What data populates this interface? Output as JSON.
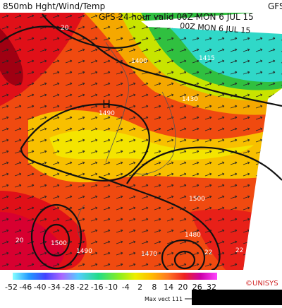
{
  "header": {
    "title": "850mb Hght/Wind/Temp",
    "model_tag": "GFS",
    "valid_time": "GFS 24 hour valid 00Z MON  6 JUL 15",
    "banner": "00Z MON  6 JUL 15"
  },
  "map": {
    "high_marker": "H",
    "labels": [
      "20",
      "1400",
      "1415",
      "1490",
      "1430",
      "20",
      "1500",
      "1480",
      "1470",
      "1490",
      "22",
      "22",
      "1500"
    ]
  },
  "legend": {
    "ticks": [
      -52,
      -46,
      -40,
      -34,
      -28,
      -22,
      -16,
      -10,
      -4,
      2,
      8,
      14,
      20,
      26,
      32
    ],
    "credit": "©UNISYS",
    "max_vector": "Max vect 111"
  }
}
